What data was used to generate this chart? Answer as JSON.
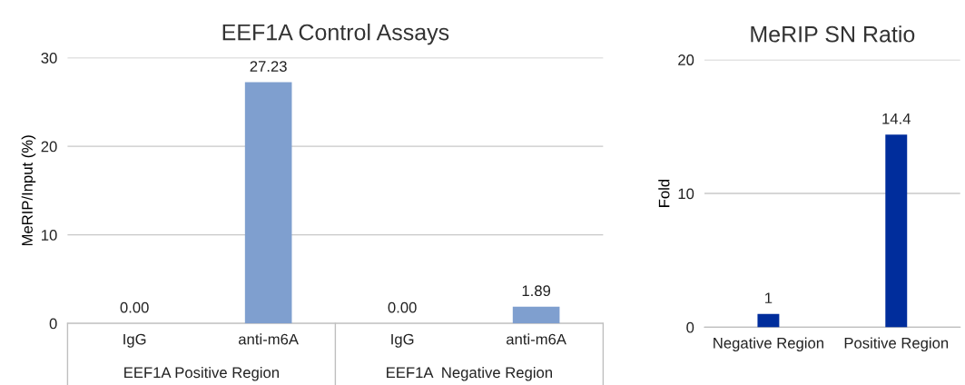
{
  "chart_data": [
    {
      "type": "bar",
      "title": "EEF1A Control Assays",
      "ylabel": "MeRIP/Input (%)",
      "categories": [
        "IgG",
        "anti-m6A",
        "IgG",
        "anti-m6A"
      ],
      "values": [
        0,
        27.23,
        0,
        1.89
      ],
      "color": "#7f9fcf",
      "value_labels": [
        "0.00",
        "27.23",
        "0.00",
        "1.89"
      ],
      "ylim": [
        0,
        30
      ],
      "yticks": [
        0,
        10,
        20,
        30
      ],
      "grid": "y",
      "annotations": [
        "EEF1A Positive Region",
        "EEF1A  Negative Region"
      ]
    },
    {
      "type": "bar",
      "title": "MeRIP SN Ratio",
      "ylabel": "Fold",
      "categories": [
        "Negative Region",
        "Positive Region"
      ],
      "values": [
        1,
        14.4
      ],
      "color": "#002d9c",
      "data_labels": true,
      "ylim": [
        0,
        20
      ],
      "yticks": [
        0,
        10,
        20
      ],
      "grid": "y"
    }
  ]
}
